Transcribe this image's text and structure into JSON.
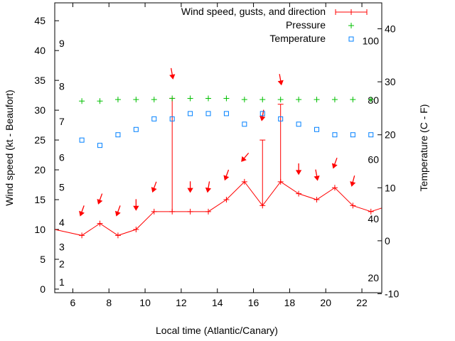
{
  "chart_data": {
    "type": "line",
    "xlabel": "Local time (Atlantic/Canary)",
    "ylabel": "Wind speed (kt - Beaufort)",
    "y2label": "Temperature (C - F)",
    "xlim": [
      5,
      23.1
    ],
    "ylim": [
      -0.6,
      48
    ],
    "y2lim": [
      -9.8,
      44.9
    ],
    "x_ticks": [
      6,
      8,
      10,
      12,
      14,
      16,
      18,
      20,
      22
    ],
    "y_ticks": [
      0,
      5,
      10,
      15,
      20,
      25,
      30,
      35,
      40,
      45
    ],
    "y2_ticks": [
      -10,
      0,
      10,
      20,
      30,
      40
    ],
    "beaufort_labels": [
      {
        "label": "1",
        "kt": 1.2
      },
      {
        "label": "2",
        "kt": 4.2
      },
      {
        "label": "3",
        "kt": 7.1
      },
      {
        "label": "4",
        "kt": 11.2
      },
      {
        "label": "5",
        "kt": 17.1
      },
      {
        "label": "6",
        "kt": 22.1
      },
      {
        "label": "7",
        "kt": 28.1
      },
      {
        "label": "8",
        "kt": 34
      },
      {
        "label": "9",
        "kt": 41.2
      }
    ],
    "fahrenheit_labels": [
      {
        "label": "100",
        "f": 100
      },
      {
        "label": "80",
        "f": 80
      },
      {
        "label": "60",
        "f": 60
      },
      {
        "label": "40",
        "f": 40
      },
      {
        "label": "20",
        "f": 20
      }
    ],
    "legend_position": "top-right",
    "series": [
      {
        "name": "Wind speed, gusts, and direction",
        "color": "#ff0000",
        "x": [
          5,
          6.5,
          7.5,
          8.5,
          9.5,
          10.5,
          11.5,
          12.5,
          13.5,
          14.5,
          15.5,
          16.5,
          17.5,
          18.5,
          19.5,
          20.5,
          21.5,
          22.5,
          23.1
        ],
        "values": [
          10,
          9,
          11,
          9,
          10,
          13,
          13,
          13,
          13,
          15,
          18,
          14,
          18,
          16,
          15,
          17,
          14,
          13,
          13.6
        ],
        "gusts": [
          null,
          null,
          null,
          null,
          null,
          null,
          32,
          null,
          null,
          null,
          null,
          25,
          31,
          null,
          null,
          null,
          null,
          null,
          null
        ],
        "direction_deg": [
          null,
          20,
          20,
          20,
          0,
          20,
          350,
          0,
          10,
          20,
          40,
          10,
          350,
          0,
          350,
          20,
          15,
          null,
          null
        ]
      },
      {
        "name": "Pressure",
        "color": "#00c000",
        "x": [
          6.5,
          7.5,
          8.5,
          9.5,
          10.5,
          11.5,
          12.5,
          13.5,
          14.5,
          15.5,
          16.5,
          17.5,
          18.5,
          19.5,
          20.5,
          21.5,
          22.5
        ],
        "values": [
          79.7,
          79.7,
          80.2,
          80.2,
          80.2,
          80.6,
          80.6,
          80.6,
          80.6,
          80.2,
          80.2,
          80.2,
          80.2,
          80.2,
          80.2,
          80.2,
          80.2
        ]
      },
      {
        "name": "Temperature",
        "color": "#0080ff",
        "x": [
          6.5,
          7.5,
          8.5,
          9.5,
          10.5,
          11.5,
          12.5,
          13.5,
          14.5,
          15.5,
          16.5,
          17.5,
          18.5,
          19.5,
          20.5,
          21.5,
          22.5
        ],
        "values": [
          19,
          18,
          20,
          21,
          23,
          23,
          24,
          24,
          24,
          22,
          24,
          23,
          22,
          21,
          20,
          20,
          20
        ]
      }
    ]
  }
}
